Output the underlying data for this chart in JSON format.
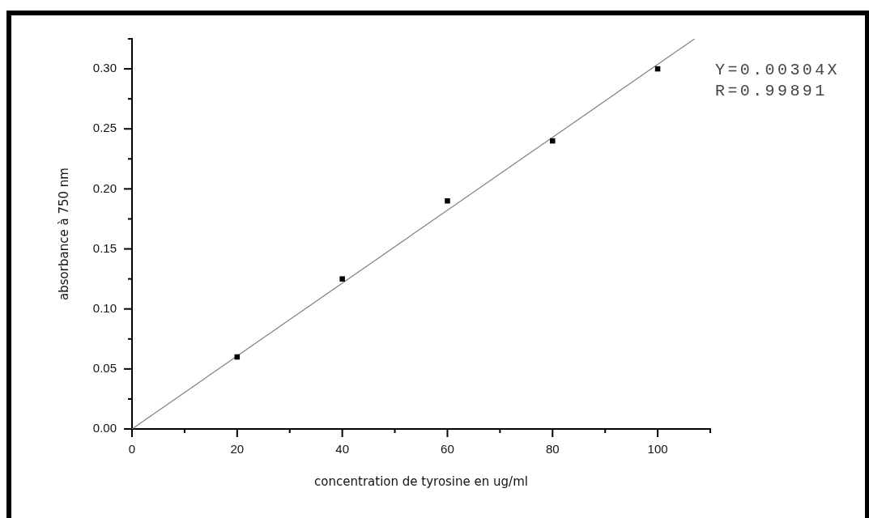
{
  "chart_data": {
    "type": "scatter",
    "xlabel": "concentration de tyrosine en ug/ml",
    "ylabel": "absorbance à 750 nm",
    "x": [
      20,
      40,
      60,
      80,
      100
    ],
    "series": [
      {
        "color": "#000000",
        "marker": "square",
        "values": [
          0.06,
          0.125,
          0.19,
          0.24,
          0.3
        ]
      },
      {
        "type": "line",
        "color": "#808080",
        "marker": "none",
        "line_style": "solid",
        "x": [
          0,
          107
        ],
        "values": [
          0,
          0.325
        ]
      }
    ],
    "xlim": [
      0,
      110
    ],
    "xticks": [
      0,
      {
        "value": 10,
        "label": null
      },
      20,
      {
        "value": 30,
        "label": null
      },
      40,
      {
        "value": 50,
        "label": null
      },
      60,
      {
        "value": 70,
        "label": null
      },
      80,
      {
        "value": 90,
        "label": null
      },
      100,
      {
        "value": 110,
        "label": null
      }
    ],
    "ylim": [
      0,
      0.325
    ],
    "yticks": [
      {
        "value": 0,
        "label": "0.00"
      },
      {
        "value": 0.025,
        "label": null
      },
      {
        "value": 0.05,
        "label": "0.05"
      },
      {
        "value": 0.075,
        "label": null
      },
      {
        "value": 0.1,
        "label": "0.10"
      },
      {
        "value": 0.125,
        "label": null
      },
      {
        "value": 0.15,
        "label": "0.15"
      },
      {
        "value": 0.175,
        "label": null
      },
      {
        "value": 0.2,
        "label": "0.20"
      },
      {
        "value": 0.225,
        "label": null
      },
      {
        "value": 0.25,
        "label": "0.25"
      },
      {
        "value": 0.275,
        "label": null
      },
      {
        "value": 0.3,
        "label": "0.30"
      },
      {
        "value": 0.325,
        "label": null
      }
    ],
    "grid": false,
    "legend": false,
    "annotations": [
      "Y=0.00304X",
      "R=0.99891"
    ]
  }
}
